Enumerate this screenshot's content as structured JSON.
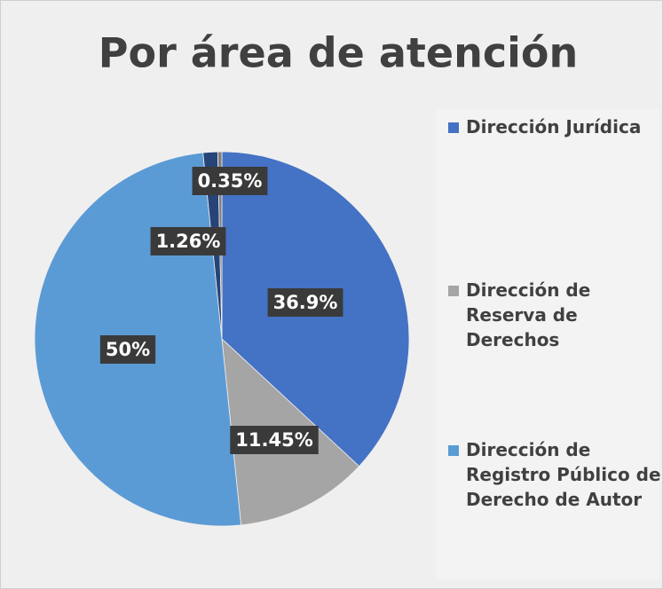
{
  "chart_data": {
    "type": "pie",
    "title": "Por área de atención",
    "categories": [
      "Dirección Jurídica",
      "Dirección de Reserva de Derechos",
      "Dirección de Registro Público del Derecho de Autor",
      null,
      null
    ],
    "values": [
      36.9,
      11.45,
      50,
      1.26,
      0.35
    ],
    "value_labels": [
      "36.9%",
      "11.45%",
      "50%",
      "1.26%",
      "0.35%"
    ],
    "colors": [
      "#4472c4",
      "#a5a5a5",
      "#5b9bd5",
      "#264478",
      "#7f7f7f"
    ]
  }
}
